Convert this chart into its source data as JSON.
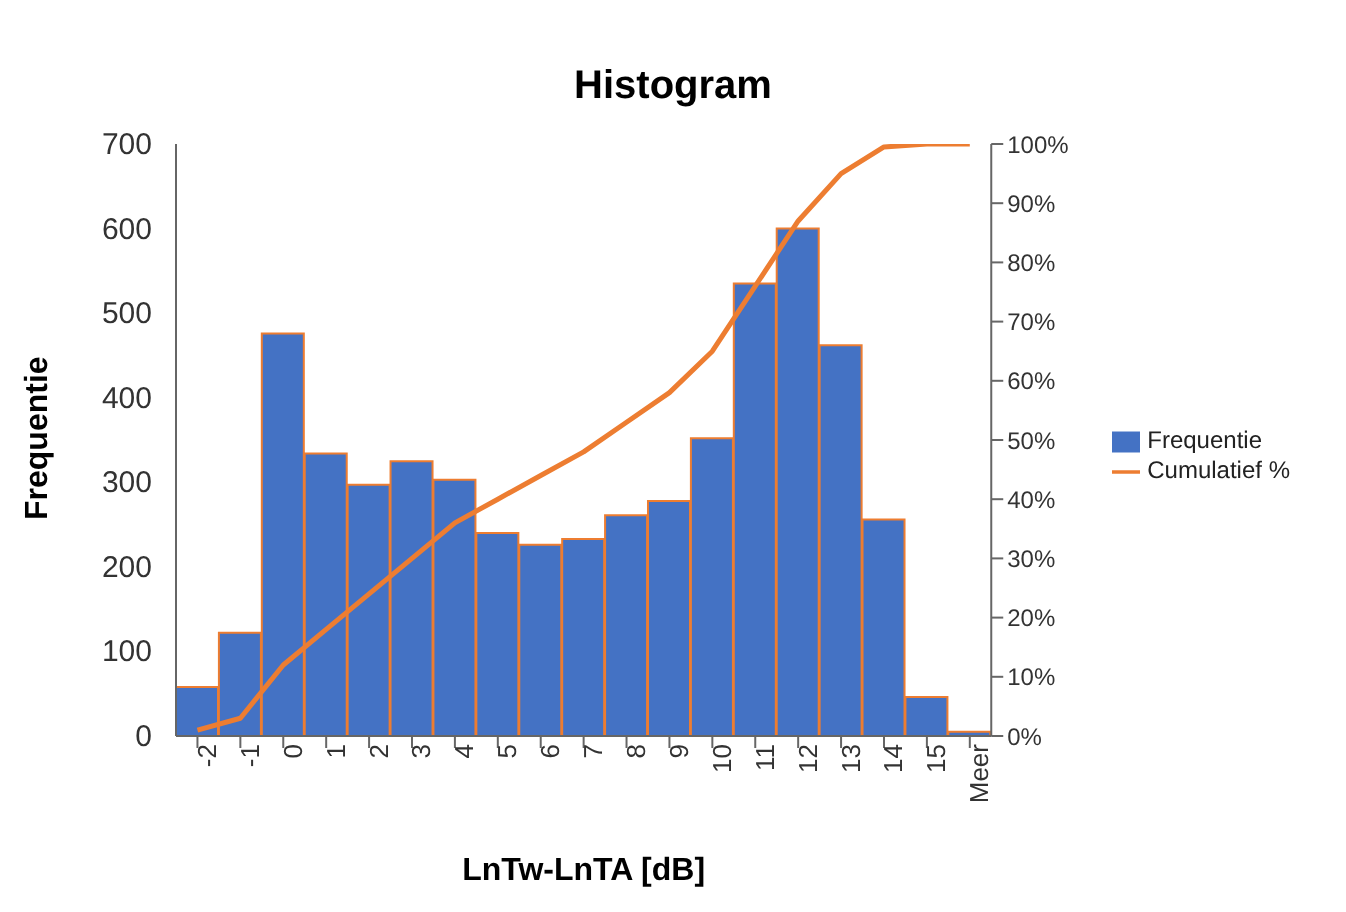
{
  "chart_data": {
    "type": "bar",
    "title": "Histogram",
    "xlabel": "LnTw-LnTA [dB]",
    "ylabel": "Frequentie",
    "categories": [
      "-2",
      "-1",
      "0",
      "1",
      "2",
      "3",
      "4",
      "5",
      "6",
      "7",
      "8",
      "9",
      "10",
      "11",
      "12",
      "13",
      "14",
      "15",
      "Meer"
    ],
    "series": [
      {
        "name": "Frequentie",
        "color": "#4472c4",
        "values": [
          58,
          122,
          476,
          334,
          297,
          325,
          303,
          240,
          226,
          233,
          261,
          278,
          352,
          535,
          600,
          462,
          256,
          46,
          5
        ]
      },
      {
        "name": "Cumulatief %",
        "type": "line",
        "axis": "y2",
        "color": "#ed7d31",
        "values": [
          1,
          3,
          12,
          18,
          24,
          30,
          36,
          40,
          44,
          48,
          53,
          58,
          65,
          76,
          87,
          95,
          99.5,
          100,
          100
        ]
      }
    ],
    "ylim": [
      0,
      700
    ],
    "yticks": [
      0,
      100,
      200,
      300,
      400,
      500,
      600,
      700
    ],
    "y2lim": [
      0,
      100
    ],
    "y2ticks": [
      {
        "value": 0,
        "label": "0%"
      },
      {
        "value": 10,
        "label": "10%"
      },
      {
        "value": 20,
        "label": "20%"
      },
      {
        "value": 30,
        "label": "30%"
      },
      {
        "value": 40,
        "label": "40%"
      },
      {
        "value": 50,
        "label": "50%"
      },
      {
        "value": 60,
        "label": "60%"
      },
      {
        "value": 70,
        "label": "70%"
      },
      {
        "value": 80,
        "label": "80%"
      },
      {
        "value": 90,
        "label": "90%"
      },
      {
        "value": 100,
        "label": "100%"
      }
    ],
    "grid": false,
    "legend": "right",
    "marker": "none"
  }
}
